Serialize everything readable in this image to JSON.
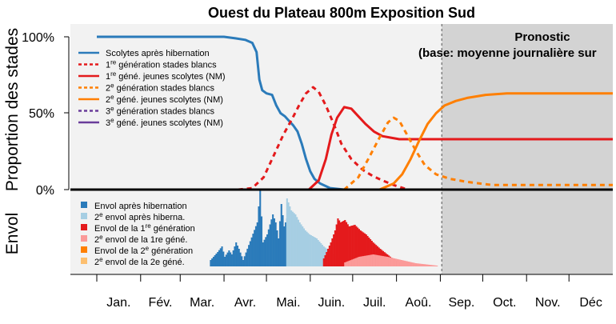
{
  "chart_data": {
    "type": "line",
    "title": "Ouest du Plateau 800m Exposition Sud",
    "ylabel_top": "Proportion des stades",
    "ylabel_bottom": "Envol",
    "yticks": [
      "100%",
      "50%",
      "0%"
    ],
    "ylim": [
      0,
      1
    ],
    "grid": false,
    "months": [
      "Jan.",
      "Fév.",
      "Mar.",
      "Avr.",
      "Mai.",
      "Juin.",
      "Juil.",
      "Aoû.",
      "Sep.",
      "Oct.",
      "Nov.",
      "Déc"
    ],
    "forecast_start_doy": 244,
    "forecast_label_line1": "Pronostic",
    "forecast_label_line2": "(base: moyenne journalière sur",
    "legend_position_lines": "top-left",
    "legend_position_bars": "bottom-left",
    "series": [
      {
        "name": "Scolytes après hibernation",
        "prefix": "Scolytes après hibernation",
        "sup": "",
        "suffix": "",
        "color": "#2b7bba",
        "dash": "solid",
        "points": [
          [
            0,
            1.0
          ],
          [
            90,
            1.0
          ],
          [
            98,
            0.99
          ],
          [
            105,
            0.98
          ],
          [
            110,
            0.96
          ],
          [
            113,
            0.9
          ],
          [
            115,
            0.72
          ],
          [
            117,
            0.65
          ],
          [
            120,
            0.63
          ],
          [
            124,
            0.62
          ],
          [
            127,
            0.55
          ],
          [
            130,
            0.5
          ],
          [
            133,
            0.48
          ],
          [
            136,
            0.45
          ],
          [
            139,
            0.42
          ],
          [
            142,
            0.38
          ],
          [
            145,
            0.3
          ],
          [
            148,
            0.2
          ],
          [
            151,
            0.12
          ],
          [
            154,
            0.07
          ],
          [
            158,
            0.04
          ],
          [
            165,
            0.01
          ],
          [
            175,
            0.0
          ],
          [
            365,
            0.0
          ]
        ]
      },
      {
        "name": "1re génération stades blancs",
        "prefix": "1",
        "sup": "re",
        "suffix": " génération stades blancs",
        "color": "#e41a1c",
        "dash": "dashed",
        "points": [
          [
            100,
            0.0
          ],
          [
            110,
            0.01
          ],
          [
            118,
            0.08
          ],
          [
            125,
            0.22
          ],
          [
            132,
            0.36
          ],
          [
            138,
            0.46
          ],
          [
            143,
            0.55
          ],
          [
            148,
            0.63
          ],
          [
            153,
            0.67
          ],
          [
            157,
            0.64
          ],
          [
            162,
            0.55
          ],
          [
            168,
            0.42
          ],
          [
            173,
            0.3
          ],
          [
            180,
            0.2
          ],
          [
            188,
            0.13
          ],
          [
            195,
            0.09
          ],
          [
            202,
            0.06
          ],
          [
            210,
            0.03
          ],
          [
            220,
            0.0
          ],
          [
            365,
            0.0
          ]
        ]
      },
      {
        "name": "1re géné. jeunes scolytes (NM)",
        "prefix": "1",
        "sup": "re",
        "suffix": " géné. jeunes scolytes (NM)",
        "color": "#e41a1c",
        "dash": "solid",
        "points": [
          [
            150,
            0.0
          ],
          [
            157,
            0.06
          ],
          [
            162,
            0.2
          ],
          [
            166,
            0.36
          ],
          [
            170,
            0.47
          ],
          [
            175,
            0.54
          ],
          [
            180,
            0.53
          ],
          [
            185,
            0.48
          ],
          [
            190,
            0.43
          ],
          [
            196,
            0.38
          ],
          [
            202,
            0.35
          ],
          [
            208,
            0.34
          ],
          [
            214,
            0.33
          ],
          [
            244,
            0.33
          ],
          [
            365,
            0.33
          ]
        ]
      },
      {
        "name": "2e génération stades blancs",
        "prefix": "2",
        "sup": "e",
        "suffix": " génération stades blancs",
        "color": "#ff7f00",
        "dash": "dashed",
        "points": [
          [
            175,
            0.0
          ],
          [
            185,
            0.08
          ],
          [
            192,
            0.2
          ],
          [
            200,
            0.34
          ],
          [
            206,
            0.44
          ],
          [
            210,
            0.47
          ],
          [
            214,
            0.45
          ],
          [
            220,
            0.35
          ],
          [
            226,
            0.25
          ],
          [
            232,
            0.16
          ],
          [
            240,
            0.1
          ],
          [
            250,
            0.07
          ],
          [
            262,
            0.05
          ],
          [
            280,
            0.03
          ],
          [
            300,
            0.03
          ],
          [
            365,
            0.03
          ]
        ]
      },
      {
        "name": "2e géné. jeunes scolytes (NM)",
        "prefix": "2",
        "sup": "e",
        "suffix": " géné. jeunes scolytes (NM)",
        "color": "#ff7f00",
        "dash": "solid",
        "points": [
          [
            200,
            0.0
          ],
          [
            210,
            0.04
          ],
          [
            216,
            0.1
          ],
          [
            222,
            0.2
          ],
          [
            228,
            0.32
          ],
          [
            234,
            0.43
          ],
          [
            240,
            0.5
          ],
          [
            246,
            0.55
          ],
          [
            254,
            0.58
          ],
          [
            262,
            0.6
          ],
          [
            275,
            0.62
          ],
          [
            290,
            0.63
          ],
          [
            365,
            0.63
          ]
        ]
      },
      {
        "name": "3e génération stades blancs",
        "prefix": "3",
        "sup": "e",
        "suffix": " génération stades blancs",
        "color": "#6a3d9a",
        "dash": "dashed",
        "points": [
          [
            0,
            0.0
          ],
          [
            365,
            0.0
          ]
        ]
      },
      {
        "name": "3e géné. jeunes scolytes (NM)",
        "prefix": "3",
        "sup": "e",
        "suffix": " géné. jeunes scolytes (NM)",
        "color": "#6a3d9a",
        "dash": "solid",
        "points": [
          [
            0,
            0.0
          ],
          [
            365,
            0.0
          ]
        ]
      }
    ],
    "flight_series": [
      {
        "name": "Envol après hibernation",
        "prefix": "Envol après hibernation",
        "sup": "",
        "suffix": "",
        "color": "#2b7bba"
      },
      {
        "name": "2e envol après hiberna.",
        "prefix": "2",
        "sup": "e",
        "suffix": " envol après hiberna.",
        "color": "#a6cee3"
      },
      {
        "name": "Envol de la 1re génération",
        "prefix": "Envol de la 1",
        "sup": "re",
        "suffix": " génération",
        "color": "#e41a1c"
      },
      {
        "name": "2e envol de la 1re géné.",
        "prefix": "2",
        "sup": "e",
        "suffix": " envol de la 1re géné.",
        "color": "#fb9a99"
      },
      {
        "name": "Envol de la 2e génération",
        "prefix": "Envol de la 2",
        "sup": "e",
        "suffix": " génération",
        "color": "#ff7f00"
      },
      {
        "name": "2e envol de la 2e géné.",
        "prefix": "2",
        "sup": "e",
        "suffix": " envol de la 2e géné.",
        "color": "#fdbf6f"
      }
    ],
    "flight_segments": [
      {
        "series": 0,
        "start": 80,
        "end": 135,
        "peaks": [
          [
            80,
            0.08
          ],
          [
            85,
            0.18
          ],
          [
            88,
            0.25
          ],
          [
            90,
            0.12
          ],
          [
            93,
            0.2
          ],
          [
            95,
            0.15
          ],
          [
            98,
            0.3
          ],
          [
            100,
            0.22
          ],
          [
            103,
            0.08
          ],
          [
            113,
            0.55
          ],
          [
            115,
            0.95
          ],
          [
            117,
            0.3
          ],
          [
            120,
            0.4
          ],
          [
            124,
            0.65
          ],
          [
            126,
            0.55
          ],
          [
            128,
            0.35
          ],
          [
            130,
            0.78
          ],
          [
            132,
            0.5
          ],
          [
            134,
            0.6
          ]
        ]
      },
      {
        "series": 1,
        "start": 134,
        "end": 170,
        "peaks": [
          [
            134,
            0.85
          ],
          [
            137,
            0.7
          ],
          [
            140,
            0.65
          ],
          [
            143,
            0.55
          ],
          [
            147,
            0.45
          ],
          [
            150,
            0.4
          ],
          [
            155,
            0.35
          ],
          [
            160,
            0.25
          ],
          [
            165,
            0.18
          ],
          [
            170,
            0.1
          ]
        ]
      },
      {
        "series": 2,
        "start": 160,
        "end": 215,
        "peaks": [
          [
            160,
            0.1
          ],
          [
            165,
            0.3
          ],
          [
            168,
            0.45
          ],
          [
            170,
            0.6
          ],
          [
            172,
            0.55
          ],
          [
            175,
            0.58
          ],
          [
            178,
            0.5
          ],
          [
            182,
            0.52
          ],
          [
            186,
            0.45
          ],
          [
            190,
            0.4
          ],
          [
            195,
            0.3
          ],
          [
            200,
            0.22
          ],
          [
            205,
            0.15
          ],
          [
            210,
            0.08
          ],
          [
            215,
            0.03
          ]
        ]
      },
      {
        "series": 3,
        "start": 175,
        "end": 240,
        "peaks": [
          [
            175,
            0.05
          ],
          [
            185,
            0.12
          ],
          [
            195,
            0.15
          ],
          [
            205,
            0.12
          ],
          [
            215,
            0.08
          ],
          [
            225,
            0.04
          ],
          [
            235,
            0.02
          ],
          [
            240,
            0.01
          ]
        ]
      }
    ]
  }
}
